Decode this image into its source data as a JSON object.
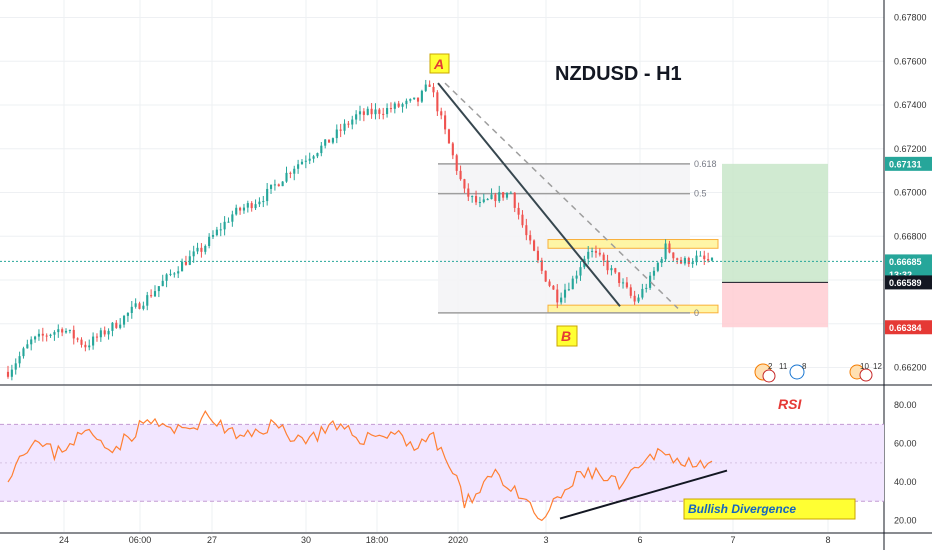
{
  "chart_data": {
    "type": "candlestick",
    "title": "NZDUSD - H1",
    "price_axis": {
      "ylim": [
        0.6612,
        0.6788
      ],
      "tick_labels": [
        "0.67800",
        "0.67600",
        "0.67400",
        "0.67200",
        "0.67000",
        "0.66800",
        "0.66600",
        "0.66400",
        "0.66200"
      ],
      "tick_values": [
        0.678,
        0.676,
        0.674,
        0.672,
        0.67,
        0.668,
        0.666,
        0.664,
        0.662
      ]
    },
    "time_axis": {
      "tick_labels": [
        "24",
        "06:00",
        "27",
        "30",
        "18:00",
        "2020",
        "3",
        "6",
        "7",
        "8"
      ]
    },
    "price_series": {
      "name": "NZDUSD",
      "approx_path_anchors": [
        [
          0,
          0.6618
        ],
        [
          6,
          0.6632
        ],
        [
          14,
          0.6638
        ],
        [
          20,
          0.663
        ],
        [
          28,
          0.664
        ],
        [
          36,
          0.6652
        ],
        [
          44,
          0.6666
        ],
        [
          50,
          0.6674
        ],
        [
          58,
          0.669
        ],
        [
          66,
          0.6698
        ],
        [
          74,
          0.6712
        ],
        [
          82,
          0.6722
        ],
        [
          90,
          0.6735
        ],
        [
          98,
          0.6738
        ],
        [
          106,
          0.6742
        ],
        [
          109,
          0.675
        ],
        [
          114,
          0.6722
        ],
        [
          118,
          0.67
        ],
        [
          122,
          0.6694
        ],
        [
          126,
          0.6698
        ],
        [
          130,
          0.67
        ],
        [
          134,
          0.668
        ],
        [
          138,
          0.6664
        ],
        [
          142,
          0.6652
        ],
        [
          146,
          0.666
        ],
        [
          150,
          0.6674
        ],
        [
          154,
          0.6668
        ],
        [
          158,
          0.666
        ],
        [
          162,
          0.665
        ],
        [
          166,
          0.666
        ],
        [
          170,
          0.6675
        ],
        [
          174,
          0.6668
        ],
        [
          178,
          0.667
        ],
        [
          182,
          0.6668
        ]
      ]
    },
    "price_labels": [
      {
        "text": "0.67131",
        "value": 0.67131,
        "color": "#26a69a"
      },
      {
        "text": "0.66685",
        "value": 0.66685,
        "color": "#26a69a"
      },
      {
        "text": "13:32",
        "value": 0.66625,
        "color": "#26a69a"
      },
      {
        "text": "0.66589",
        "value": 0.66589,
        "color": "#131722"
      },
      {
        "text": "0.66384",
        "value": 0.66384,
        "color": "#e53935"
      }
    ],
    "current_price": 0.66685,
    "fibonacci": {
      "levels": [
        {
          "label": "0.618",
          "value": 0.67131
        },
        {
          "label": "0.5",
          "value": 0.66995
        },
        {
          "label": "0",
          "value": 0.6645
        }
      ]
    },
    "zones": {
      "resistance": [
        0.66745,
        0.66785
      ],
      "support": [
        0.6645,
        0.66485
      ],
      "target": [
        0.66589,
        0.67131
      ],
      "stop": [
        0.66384,
        0.66589
      ]
    },
    "annotations": {
      "point_a": "A",
      "point_b": "B",
      "divergence_label": "Bullish Divergence",
      "rsi_label": "RSI"
    },
    "events": {
      "group_1_counts": [
        "2",
        "11"
      ],
      "group_2_count": "8",
      "group_3_counts": [
        "10",
        "12"
      ]
    },
    "rsi": {
      "name": "RSI",
      "ylim": [
        14,
        90
      ],
      "band": [
        30,
        70
      ],
      "tick_labels": [
        "80.00",
        "60.00",
        "40.00",
        "20.00"
      ],
      "tick_values": [
        80,
        60,
        40,
        20
      ],
      "approx_path_anchors": [
        [
          0,
          44
        ],
        [
          6,
          62
        ],
        [
          12,
          55
        ],
        [
          20,
          66
        ],
        [
          28,
          58
        ],
        [
          36,
          72
        ],
        [
          44,
          66
        ],
        [
          52,
          74
        ],
        [
          60,
          62
        ],
        [
          68,
          70
        ],
        [
          76,
          62
        ],
        [
          84,
          68
        ],
        [
          92,
          63
        ],
        [
          100,
          66
        ],
        [
          106,
          58
        ],
        [
          109,
          65
        ],
        [
          112,
          56
        ],
        [
          116,
          42
        ],
        [
          118,
          27
        ],
        [
          122,
          38
        ],
        [
          126,
          46
        ],
        [
          130,
          36
        ],
        [
          134,
          28
        ],
        [
          138,
          20
        ],
        [
          142,
          30
        ],
        [
          146,
          40
        ],
        [
          150,
          46
        ],
        [
          154,
          42
        ],
        [
          158,
          38
        ],
        [
          162,
          44
        ],
        [
          166,
          52
        ],
        [
          170,
          58
        ],
        [
          174,
          48
        ],
        [
          178,
          52
        ],
        [
          182,
          50
        ]
      ]
    },
    "colors": {
      "up": "#26a69a",
      "down": "#ef5350",
      "rsi_line": "#ff7f32",
      "rsi_band": "#f2e6ff",
      "fib_line": "#9e9e9e",
      "trend_line": "#37474f",
      "zone_fill": "#fff59d",
      "target_fill": "#c8e6c9",
      "stop_fill": "#ffcdd2",
      "divergence_box": "#ffff33"
    }
  }
}
